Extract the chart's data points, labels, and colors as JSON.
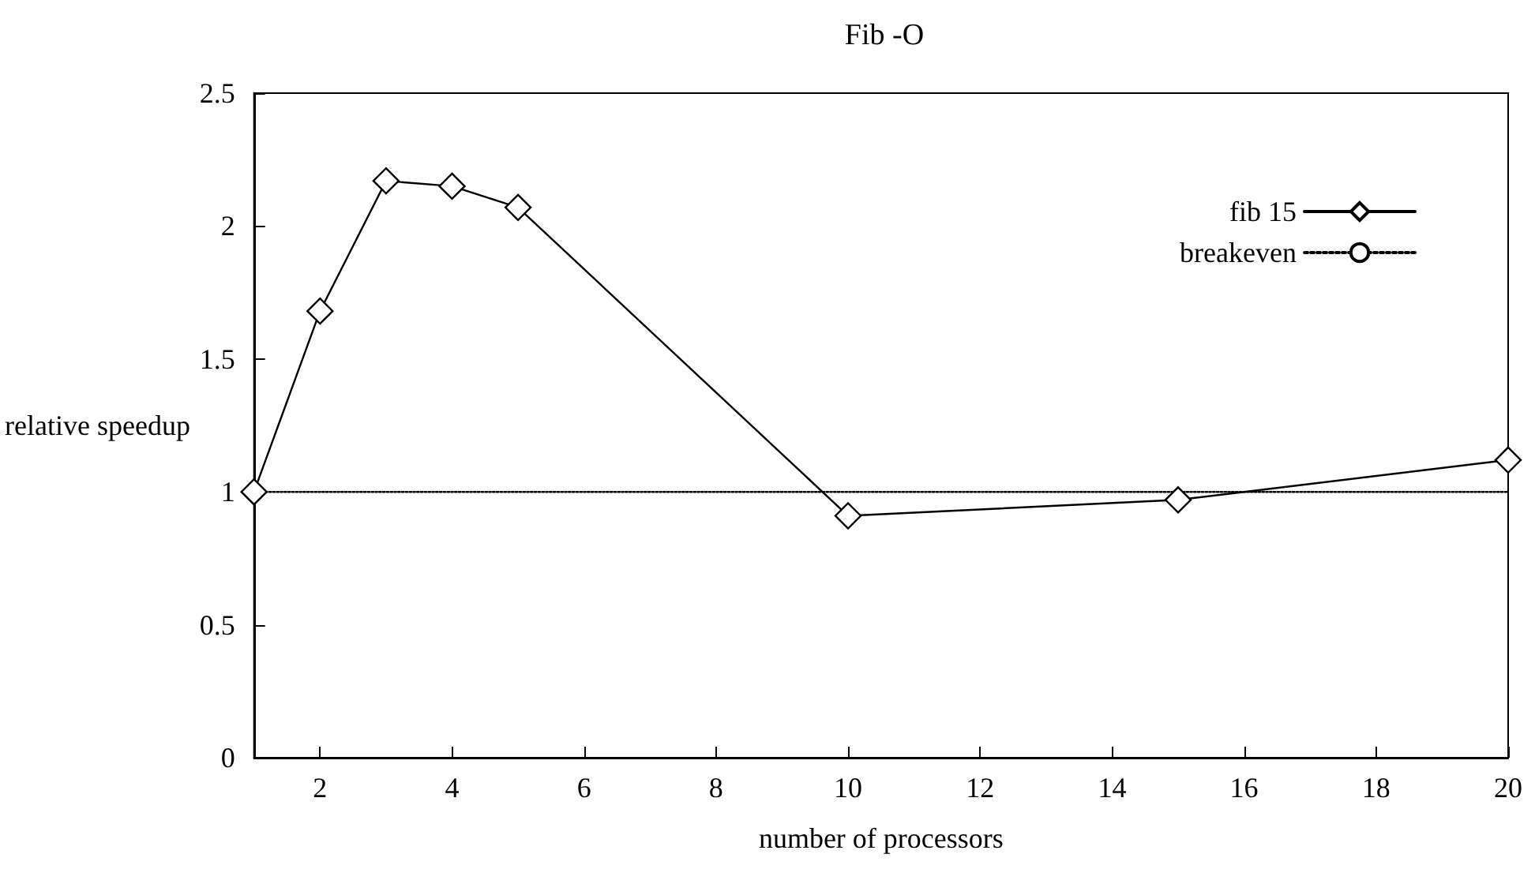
{
  "chart_data": {
    "type": "line",
    "title": "Fib -O",
    "xlabel": "number of processors",
    "ylabel": "relative speedup",
    "xlim": [
      1,
      20
    ],
    "xticks": [
      2,
      4,
      6,
      8,
      10,
      12,
      14,
      16,
      18,
      20
    ],
    "ylim": [
      0,
      2.5
    ],
    "yticks": [
      0,
      0.5,
      1,
      1.5,
      2,
      2.5
    ],
    "grid": false,
    "legend": "top right",
    "series": [
      {
        "name": "fib 15",
        "color": "#000000",
        "x": [
          1,
          2,
          3,
          4,
          5,
          10,
          15,
          20
        ],
        "values": [
          1.0,
          1.68,
          2.17,
          2.15,
          2.07,
          0.91,
          0.97,
          1.12
        ],
        "marker": "diamond",
        "line_style": "solid"
      },
      {
        "name": "breakeven",
        "color": "#000000",
        "x": [
          1,
          20
        ],
        "values": [
          1,
          1
        ],
        "marker": "none",
        "line_style": "dotted"
      }
    ]
  }
}
